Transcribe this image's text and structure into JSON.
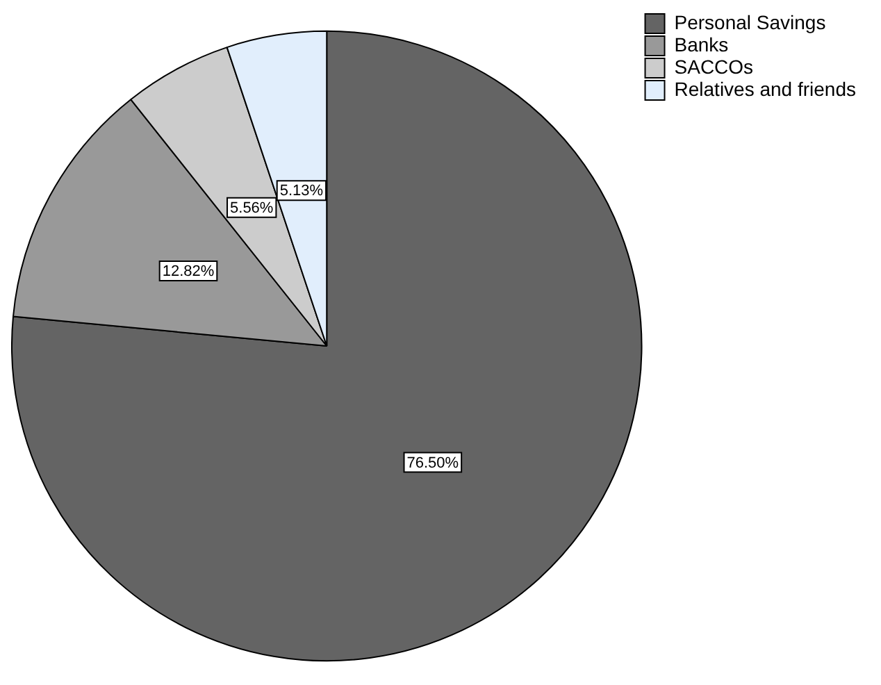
{
  "chart_data": {
    "type": "pie",
    "categories": [
      "Personal Savings",
      "Banks",
      "SACCOs",
      "Relatives and friends"
    ],
    "values": [
      76.5,
      12.82,
      5.56,
      5.13
    ],
    "colors": [
      "#646464",
      "#999999",
      "#cccccc",
      "#e1eefc"
    ],
    "value_labels": [
      "76.50%",
      "12.82%",
      "5.56%",
      "5.13%"
    ],
    "legend": "top right"
  }
}
